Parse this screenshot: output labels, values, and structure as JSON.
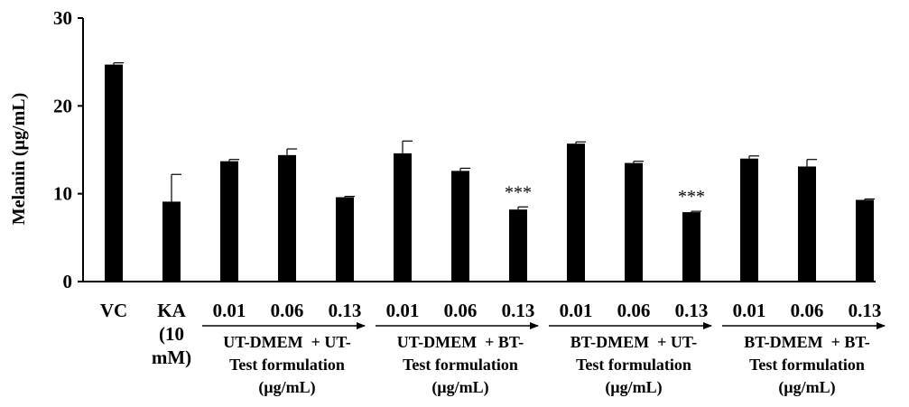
{
  "chart_data": {
    "type": "bar",
    "ylabel": "Melanin (µg/mL)",
    "ylim": [
      0,
      30
    ],
    "yticks": [
      "0",
      "10",
      "20",
      "30"
    ],
    "grid": false,
    "bar_color": "#000000",
    "categories": [
      {
        "label_lines": [
          "VC"
        ],
        "value": 24.7,
        "error": 0.2,
        "annotation": ""
      },
      {
        "label_lines": [
          "KA",
          "(10",
          "mM)"
        ],
        "value": 9.1,
        "error": 3.1,
        "annotation": ""
      },
      {
        "label_lines": [
          "0.01"
        ],
        "value": 13.7,
        "error": 0.2,
        "annotation": ""
      },
      {
        "label_lines": [
          "0.06"
        ],
        "value": 14.4,
        "error": 0.7,
        "annotation": ""
      },
      {
        "label_lines": [
          "0.13"
        ],
        "value": 9.6,
        "error": 0.1,
        "annotation": ""
      },
      {
        "label_lines": [
          "0.01"
        ],
        "value": 14.6,
        "error": 1.4,
        "annotation": ""
      },
      {
        "label_lines": [
          "0.06"
        ],
        "value": 12.6,
        "error": 0.3,
        "annotation": ""
      },
      {
        "label_lines": [
          "0.13"
        ],
        "value": 8.2,
        "error": 0.3,
        "annotation": "***"
      },
      {
        "label_lines": [
          "0.01"
        ],
        "value": 15.7,
        "error": 0.2,
        "annotation": ""
      },
      {
        "label_lines": [
          "0.06"
        ],
        "value": 13.5,
        "error": 0.2,
        "annotation": ""
      },
      {
        "label_lines": [
          "0.13"
        ],
        "value": 7.9,
        "error": 0.1,
        "annotation": "***"
      },
      {
        "label_lines": [
          "0.01"
        ],
        "value": 14.0,
        "error": 0.3,
        "annotation": ""
      },
      {
        "label_lines": [
          "0.06"
        ],
        "value": 13.1,
        "error": 0.8,
        "annotation": ""
      },
      {
        "label_lines": [
          "0.13"
        ],
        "value": 9.3,
        "error": 0.1,
        "annotation": ""
      }
    ],
    "groups": [
      {
        "start": 2,
        "end": 4,
        "label_lines": [
          "UT-DMEM  + UT-",
          "Test formulation",
          "(µg/mL)"
        ]
      },
      {
        "start": 5,
        "end": 7,
        "label_lines": [
          "UT-DMEM  + BT-",
          "Test formulation",
          "(µg/mL)"
        ]
      },
      {
        "start": 8,
        "end": 10,
        "label_lines": [
          "BT-DMEM  + UT-",
          "Test formulation",
          "(µg/mL)"
        ]
      },
      {
        "start": 11,
        "end": 13,
        "label_lines": [
          "BT-DMEM  + BT-",
          "Test formulation",
          "(µg/mL)"
        ]
      }
    ]
  }
}
